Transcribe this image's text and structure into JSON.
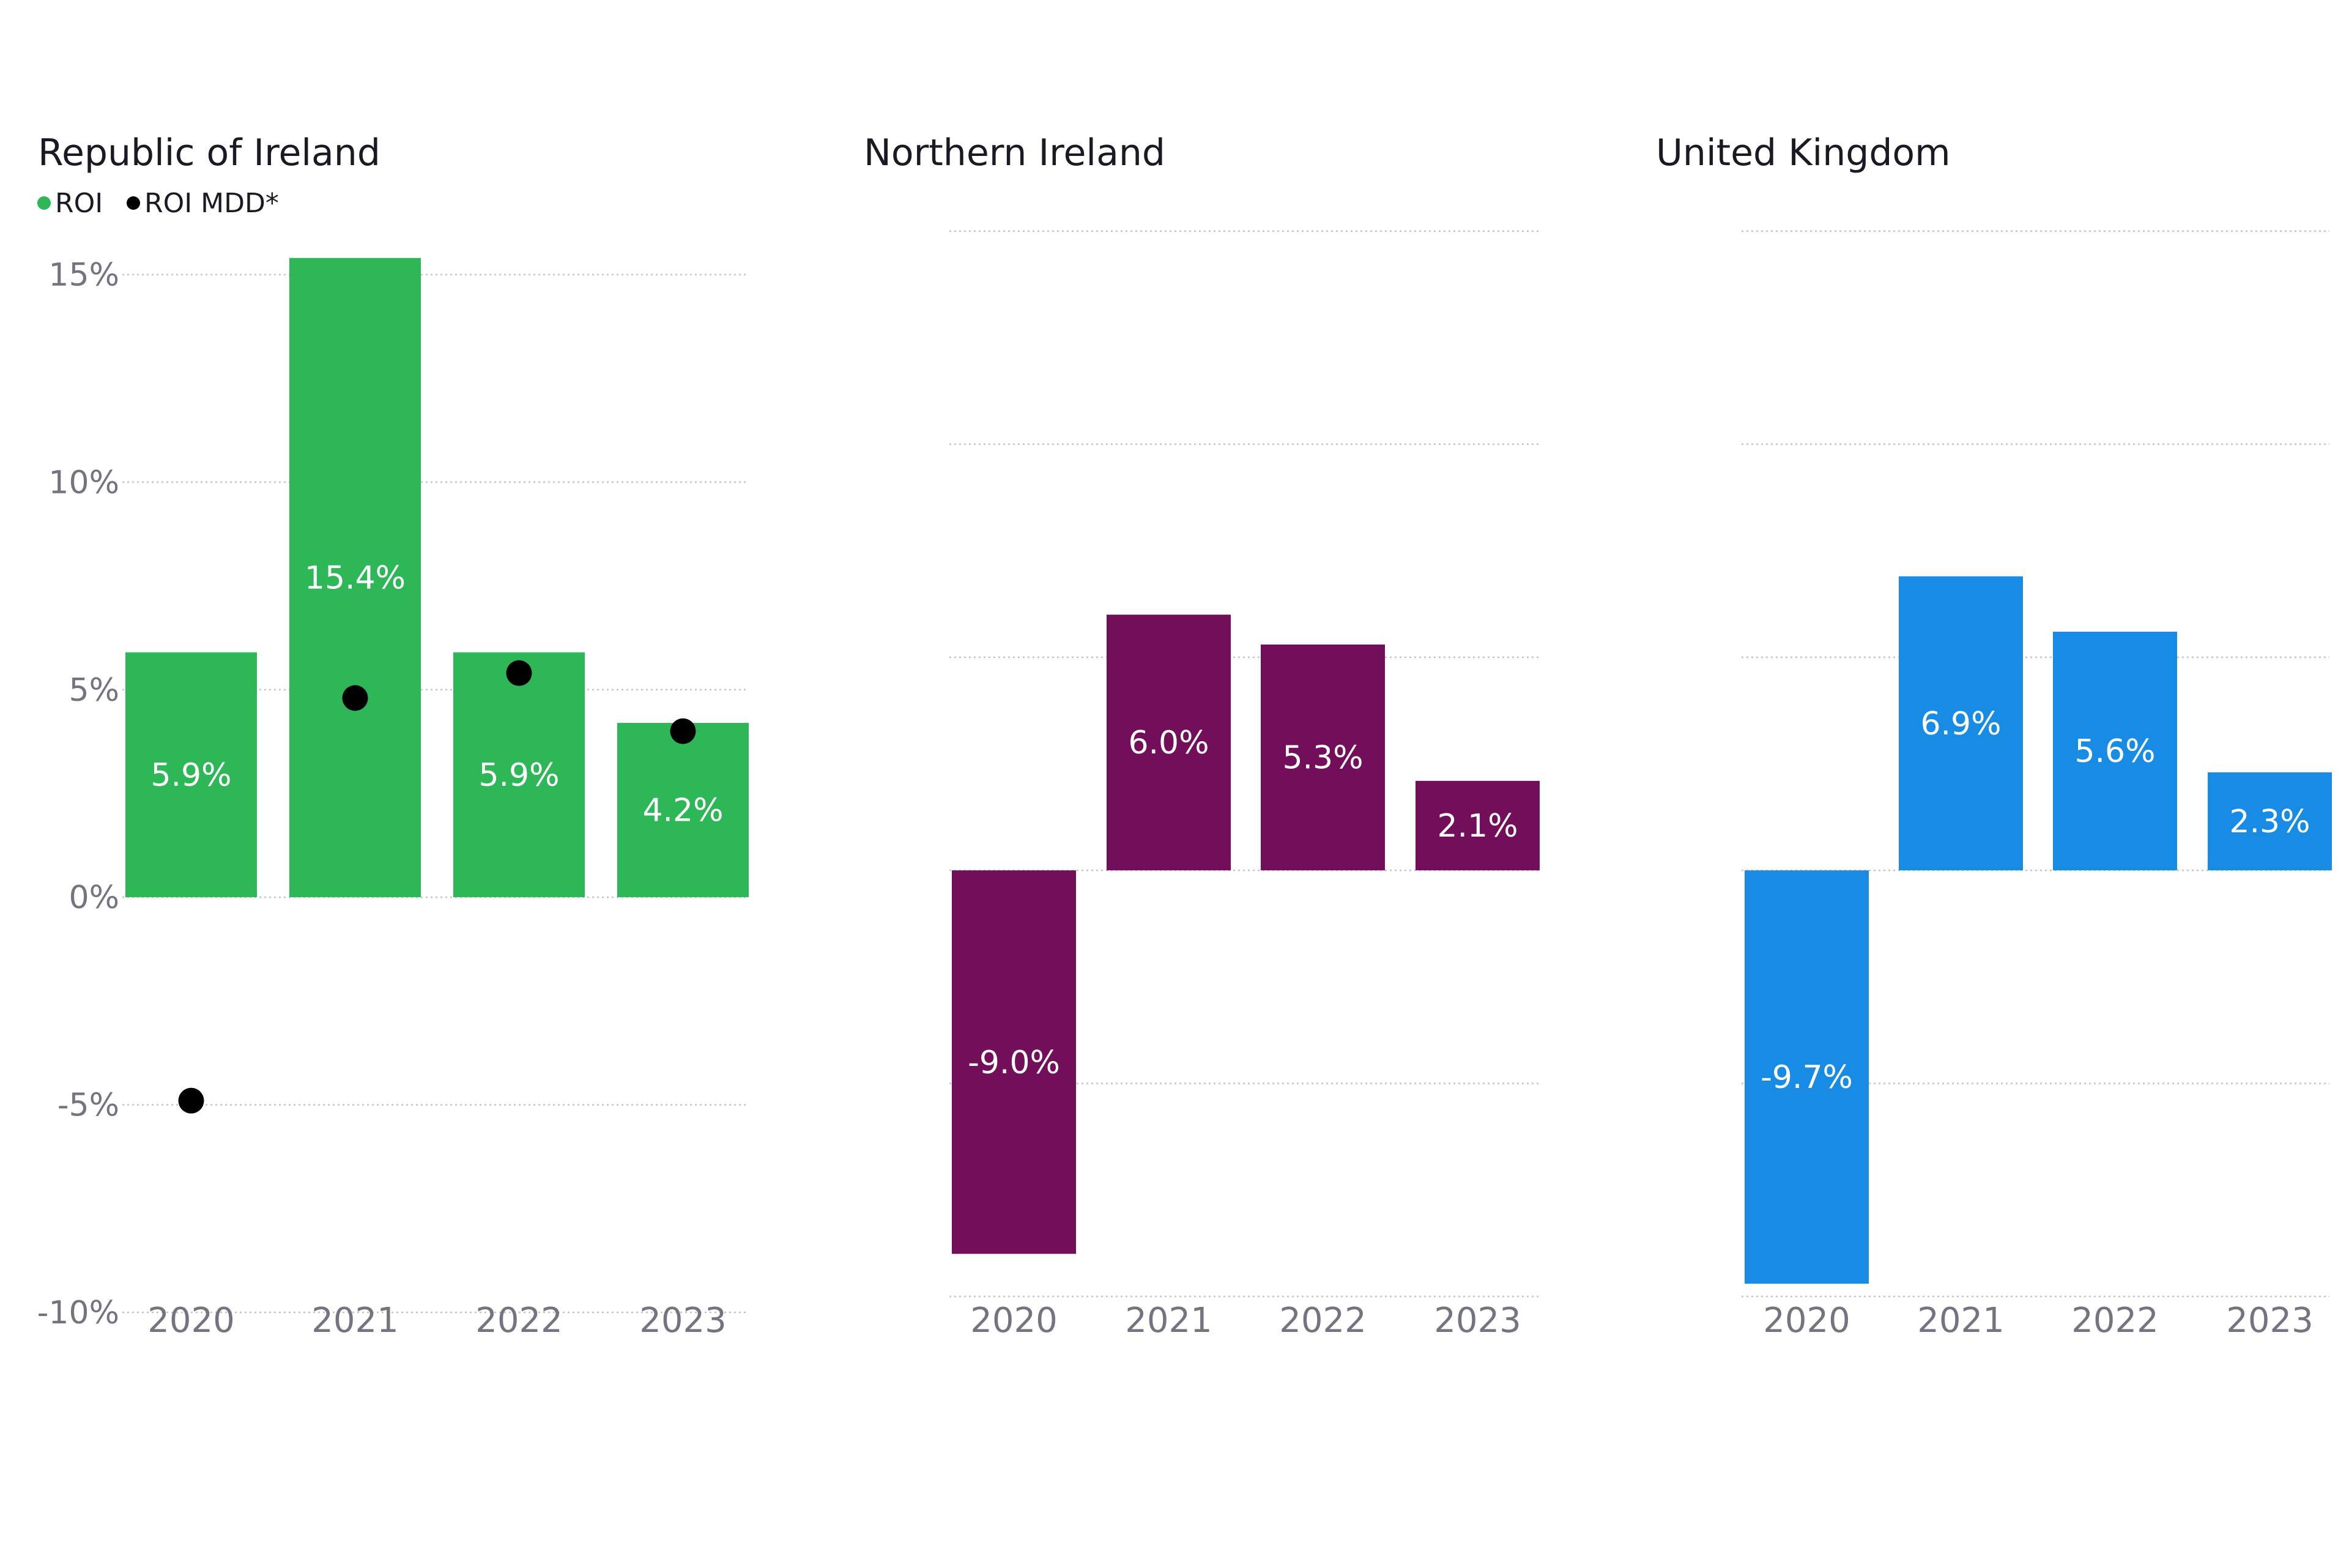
{
  "chart_data": [
    {
      "type": "bar",
      "title": "Republic of Ireland",
      "categories": [
        "2020",
        "2021",
        "2022",
        "2023"
      ],
      "series": [
        {
          "name": "ROI",
          "kind": "bar",
          "color": "#2db757",
          "values": [
            5.9,
            15.4,
            5.9,
            4.2
          ],
          "labels": [
            "5.9%",
            "15.4%",
            "5.9%",
            "4.2%"
          ]
        },
        {
          "name": "ROI MDD*",
          "kind": "dot",
          "color": "#000000",
          "values": [
            -4.9,
            4.8,
            5.4,
            4.0
          ]
        }
      ],
      "ylim": [
        -10,
        15.5
      ],
      "yticks": [
        15,
        10,
        5,
        0,
        -5,
        -10
      ],
      "ytick_labels": [
        "15%",
        "10%",
        "5%",
        "0%",
        "-5%",
        "-10%"
      ],
      "show_y_tick_labels": true,
      "legend": [
        "ROI",
        "ROI MDD*"
      ],
      "legend_position": "top-left"
    },
    {
      "type": "bar",
      "title": "Northern Ireland",
      "categories": [
        "2020",
        "2021",
        "2022",
        "2023"
      ],
      "series": [
        {
          "name": "Northern Ireland",
          "kind": "bar",
          "color": "#730e5b",
          "values": [
            -9.0,
            6.0,
            5.3,
            2.1
          ],
          "labels": [
            "-9.0%",
            "6.0%",
            "5.3%",
            "2.1%"
          ]
        }
      ],
      "ylim": [
        -10,
        15
      ],
      "yticks": [
        15,
        10,
        5,
        0,
        -5,
        -10
      ],
      "show_y_tick_labels": false
    },
    {
      "type": "bar",
      "title": "United Kingdom",
      "categories": [
        "2020",
        "2021",
        "2022",
        "2023"
      ],
      "series": [
        {
          "name": "United Kingdom",
          "kind": "bar",
          "color": "#188ce5",
          "values": [
            -9.7,
            6.9,
            5.6,
            2.3
          ],
          "labels": [
            "-9.7%",
            "6.9%",
            "5.6%",
            "2.3%"
          ]
        }
      ],
      "ylim": [
        -10,
        15
      ],
      "yticks": [
        15,
        10,
        5,
        0,
        -5,
        -10
      ],
      "show_y_tick_labels": false
    }
  ]
}
